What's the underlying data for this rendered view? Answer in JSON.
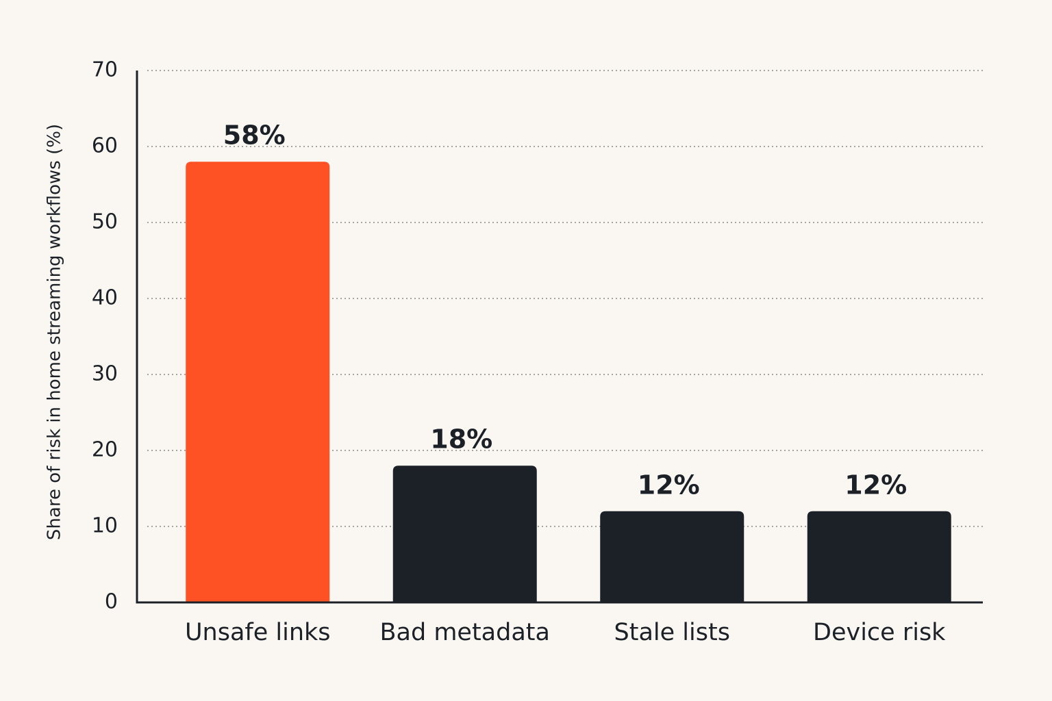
{
  "chart_data": {
    "type": "bar",
    "y_label": "Share of risk in home streaming workflows (%)",
    "categories": [
      "Unsafe links",
      "Bad metadata",
      "Stale lists",
      "Device risk"
    ],
    "values": [
      58,
      18,
      12,
      12
    ],
    "value_labels": [
      "58%",
      "18%",
      "12%",
      "12%"
    ],
    "colors": [
      "#ff5224",
      "#1c2128",
      "#1c2128",
      "#1c2128"
    ],
    "ylim": [
      0,
      70
    ],
    "yticks": [
      0,
      10,
      20,
      30,
      40,
      50,
      60,
      70
    ],
    "grid": true
  }
}
